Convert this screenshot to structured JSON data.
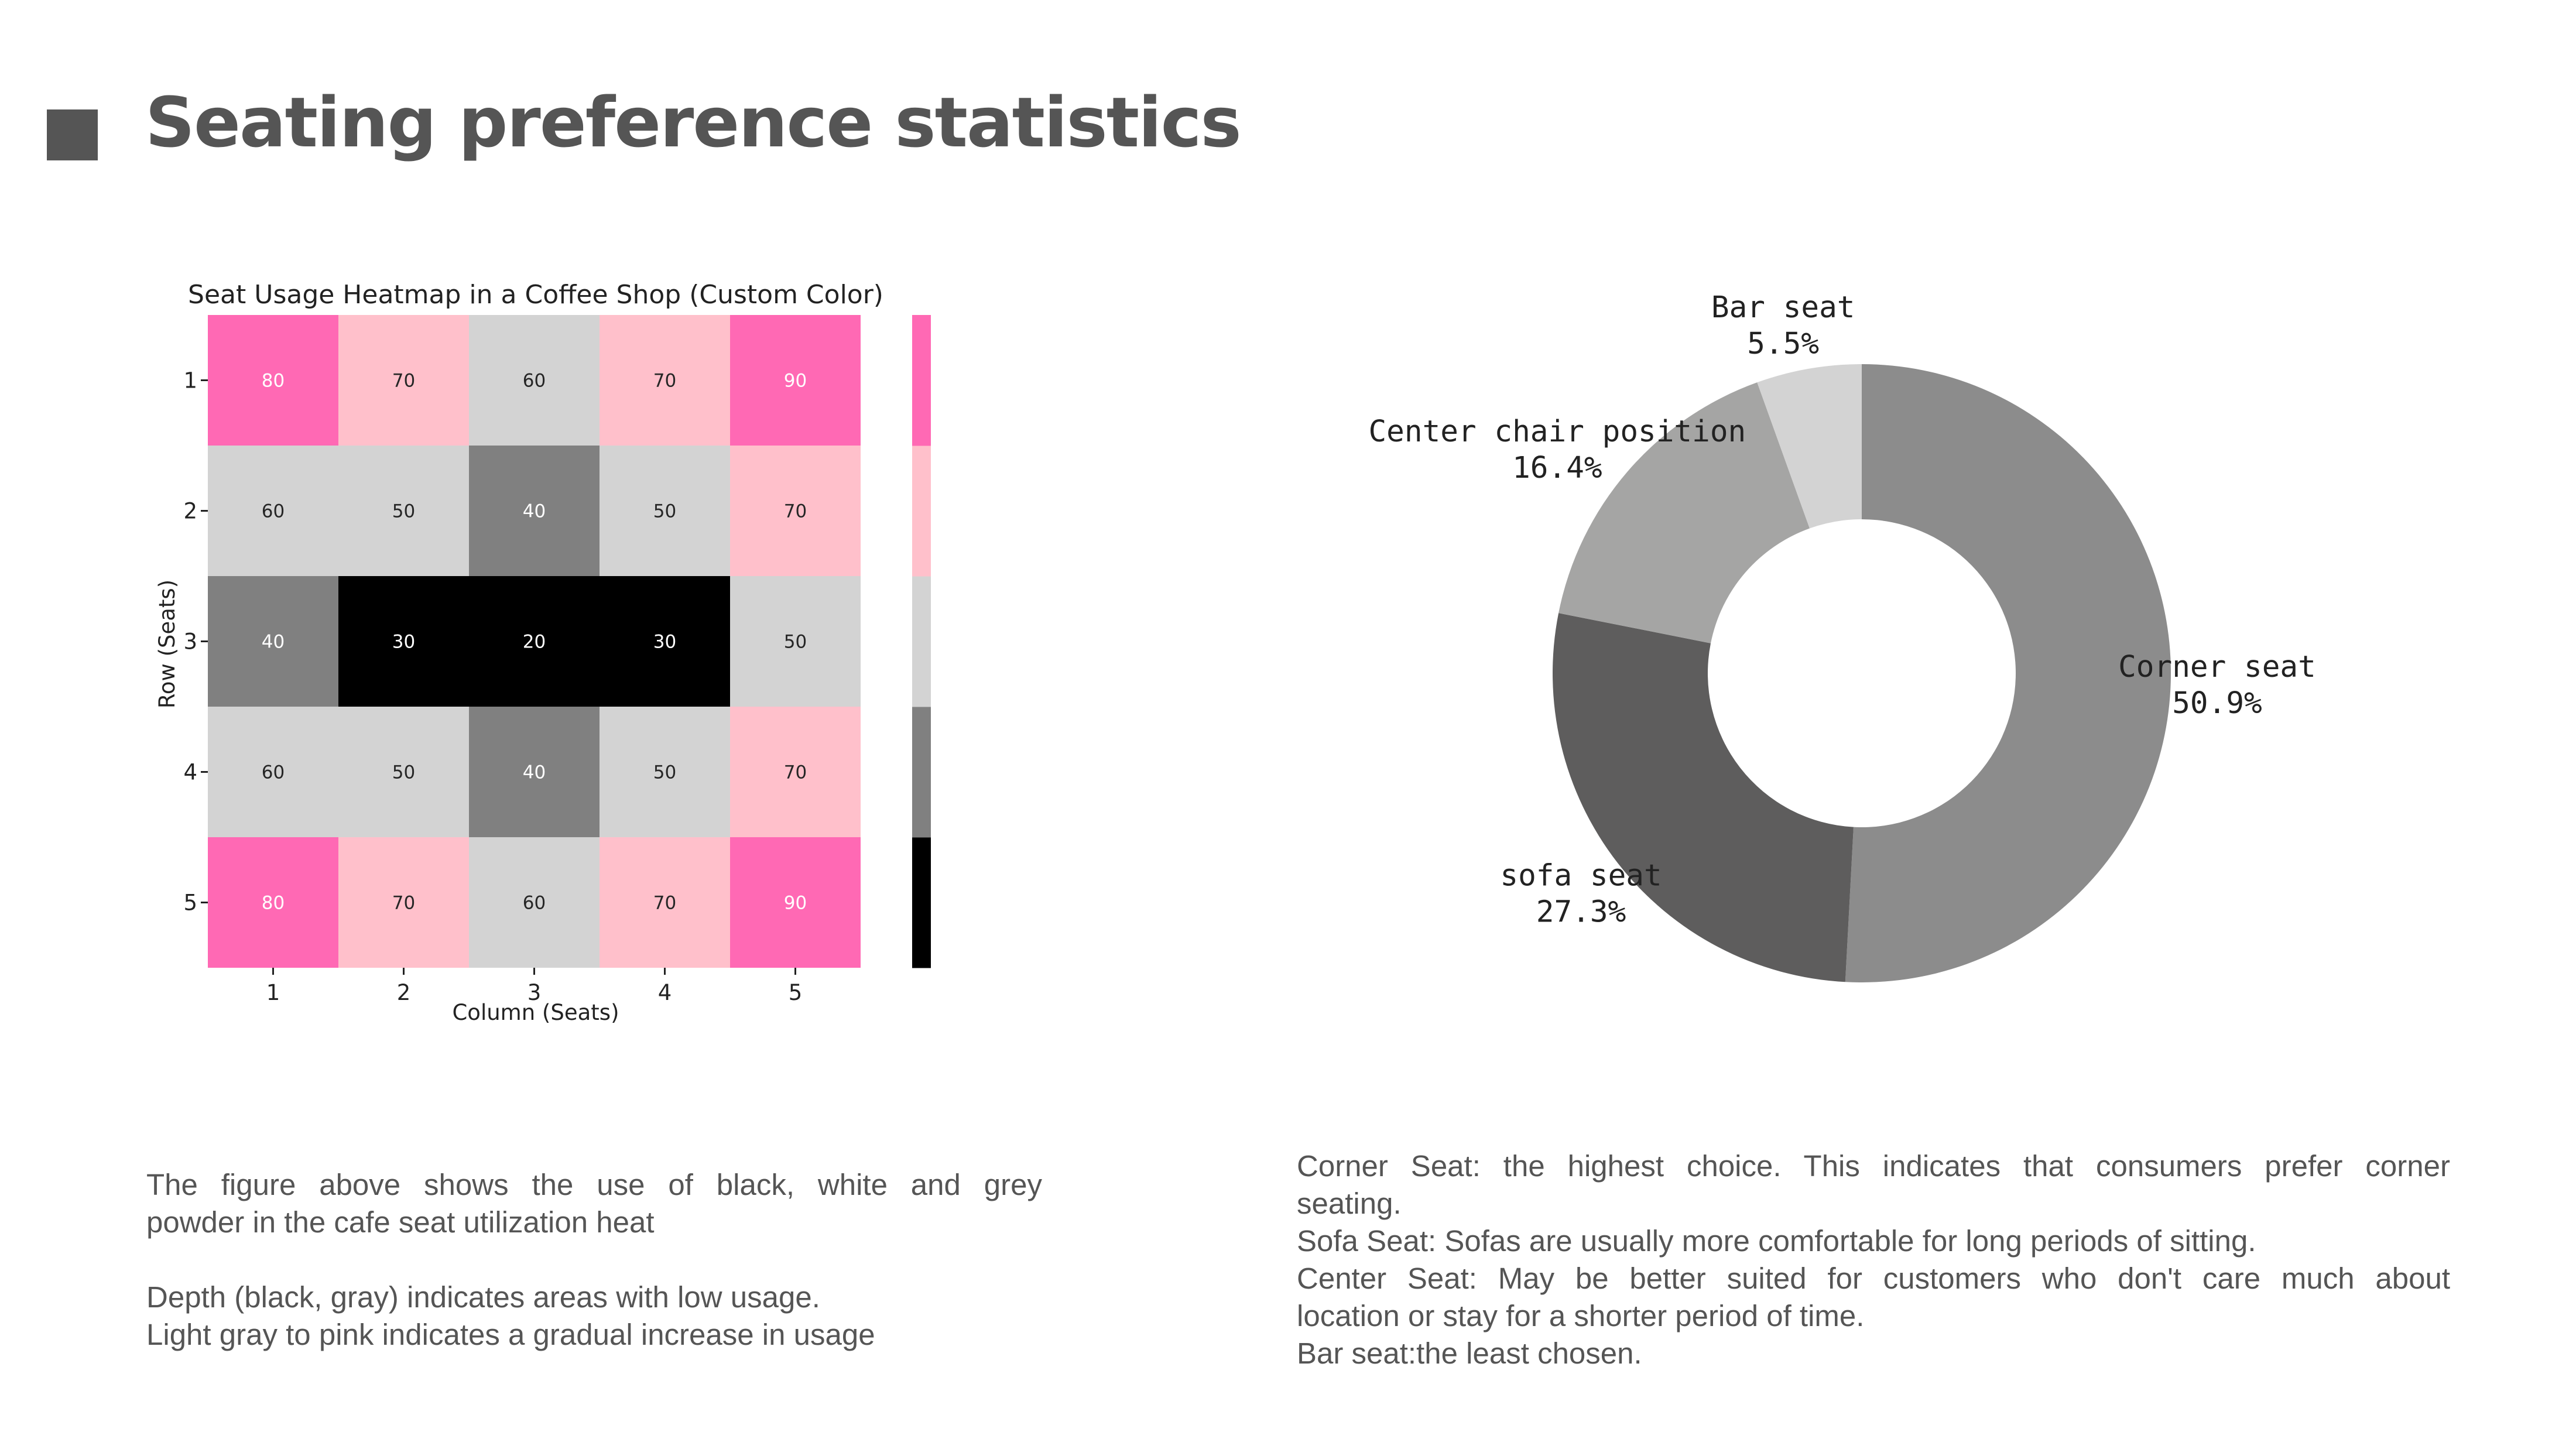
{
  "page": {
    "title": "Seating preference statistics",
    "accent": "#555555"
  },
  "left_text": {
    "lines": [
      "The figure above shows the use of black, white and grey",
      "powder in the cafe seat utilization heat",
      "Depth (black, gray) indicates areas with low usage.",
      "Light gray to pink indicates a gradual increase in usage"
    ]
  },
  "right_text": {
    "lines": [
      "Corner Seat: the highest choice. This indicates that consumers prefer corner",
      "seating.",
      "Sofa Seat: Sofas are usually more comfortable for long periods of sitting.",
      "Center Seat: May be better suited for customers who don't care much about",
      "location or stay for a shorter period of time.",
      "Bar seat:the least chosen."
    ]
  },
  "chart_data": [
    {
      "type": "heatmap",
      "title": "Seat Usage Heatmap in a Coffee Shop (Custom Color)",
      "xlabel": "Column (Seats)",
      "ylabel": "Row (Seats)",
      "x_categories": [
        "1",
        "2",
        "3",
        "4",
        "5"
      ],
      "y_categories": [
        "1",
        "2",
        "3",
        "4",
        "5"
      ],
      "values": [
        [
          80,
          70,
          60,
          70,
          90
        ],
        [
          60,
          50,
          40,
          50,
          70
        ],
        [
          40,
          30,
          20,
          30,
          50
        ],
        [
          60,
          50,
          40,
          50,
          70
        ],
        [
          80,
          70,
          60,
          70,
          90
        ]
      ],
      "colorbar": {
        "range": [
          20,
          90
        ],
        "ticks": [
          "20",
          "30",
          "40",
          "50",
          "60",
          "70",
          "80",
          "90"
        ],
        "colors": [
          "#000000",
          "#808080",
          "#d3d3d3",
          "#ffc0cb",
          "#ff69b4"
        ]
      }
    },
    {
      "type": "pie",
      "donut": true,
      "labels": [
        "Corner seat",
        "sofa seat",
        "Center chair position",
        "Bar seat"
      ],
      "percent_labels": [
        "50.9%",
        "27.3%",
        "16.4%",
        "5.5%"
      ],
      "values": [
        50.9,
        27.3,
        16.4,
        5.5
      ],
      "colors": [
        "#8c8c8c",
        "#5e5d5d",
        "#a5a5a4",
        "#d3d3d3"
      ]
    }
  ]
}
